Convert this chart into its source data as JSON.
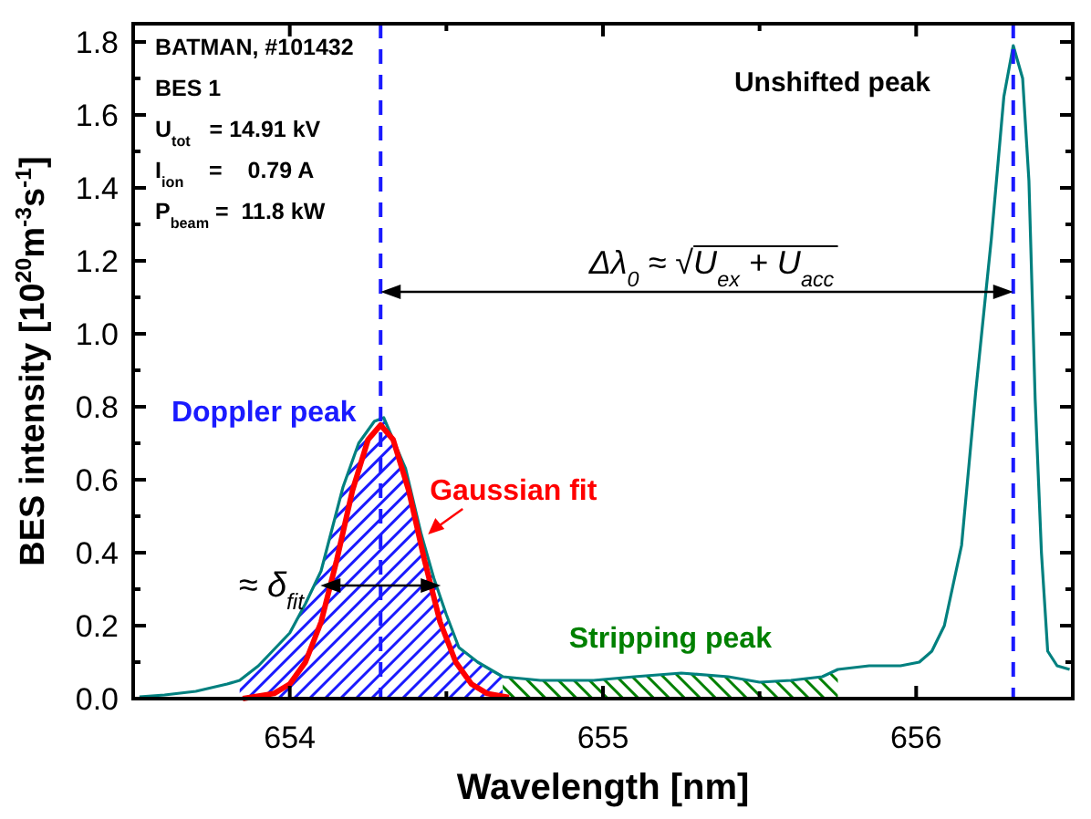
{
  "chart_data": {
    "type": "line",
    "xlabel": "Wavelength [nm]",
    "ylabel": "BES intensity [10$^{20}$m$^{-3}$s$^{-1}$]",
    "xlim": [
      653.5,
      656.5
    ],
    "ylim": [
      0,
      1.85
    ],
    "xticks": [
      {
        "value": 653.5,
        "label": null
      },
      654,
      {
        "value": 654.5,
        "label": null
      },
      655,
      {
        "value": 655.5,
        "label": null
      },
      656,
      {
        "value": 656.5,
        "label": null
      }
    ],
    "yticks": [
      "0.0",
      {
        "value": 0.1,
        "label": null
      },
      {
        "value": 0.2,
        "label": "0.2"
      },
      {
        "value": 0.3,
        "label": null
      },
      {
        "value": 0.4,
        "label": "0.4"
      },
      {
        "value": 0.5,
        "label": null
      },
      {
        "value": 0.6,
        "label": "0.6"
      },
      {
        "value": 0.7,
        "label": null
      },
      {
        "value": 0.8,
        "label": "0.8"
      },
      {
        "value": 0.9,
        "label": null
      },
      {
        "value": 1.0,
        "label": "1.0"
      },
      {
        "value": 1.1,
        "label": null
      },
      {
        "value": 1.2,
        "label": "1.2"
      },
      {
        "value": 1.3,
        "label": null
      },
      {
        "value": 1.4,
        "label": "1.4"
      },
      {
        "value": 1.5,
        "label": null
      },
      {
        "value": 1.6,
        "label": "1.6"
      },
      {
        "value": 1.7,
        "label": null
      },
      {
        "value": 1.8,
        "label": "1.8"
      }
    ],
    "grid": false,
    "legend": false,
    "marker": "none",
    "series": [
      {
        "type": "area",
        "name": "Doppler peak",
        "color": "#1a1aff",
        "x": [
          653.84,
          653.9,
          654.0,
          654.05,
          654.1,
          654.17,
          654.22,
          654.27,
          654.3,
          654.37,
          654.42,
          654.46,
          654.5,
          654.54,
          654.6,
          654.68
        ],
        "values": [
          0.05,
          0.09,
          0.18,
          0.26,
          0.35,
          0.58,
          0.7,
          0.76,
          0.77,
          0.63,
          0.45,
          0.33,
          0.23,
          0.14,
          0.1,
          0.06
        ]
      },
      {
        "type": "area",
        "name": "Stripping peak",
        "color": "#008000",
        "x": [
          654.68,
          654.8,
          654.97,
          655.1,
          655.25,
          655.4,
          655.5,
          655.6,
          655.7,
          655.75
        ],
        "values": [
          0.06,
          0.05,
          0.05,
          0.06,
          0.07,
          0.06,
          0.045,
          0.05,
          0.06,
          0.08
        ]
      },
      {
        "color": "#00807f",
        "x": [
          653.52,
          653.6,
          653.7,
          653.8,
          653.84,
          653.9,
          654.0,
          654.05,
          654.1,
          654.17,
          654.22,
          654.27,
          654.3,
          654.37,
          654.42,
          654.46,
          654.5,
          654.54,
          654.6,
          654.68,
          654.8,
          654.97,
          655.1,
          655.25,
          655.4,
          655.5,
          655.6,
          655.7,
          655.75,
          655.85,
          655.95,
          656.01,
          656.05,
          656.09,
          656.145,
          656.19,
          656.24,
          656.28,
          656.31,
          656.34,
          656.36,
          656.38,
          656.4,
          656.42,
          656.45,
          656.49
        ],
        "values": [
          0.005,
          0.01,
          0.02,
          0.04,
          0.05,
          0.09,
          0.18,
          0.26,
          0.35,
          0.58,
          0.7,
          0.76,
          0.77,
          0.63,
          0.45,
          0.33,
          0.23,
          0.14,
          0.1,
          0.06,
          0.05,
          0.05,
          0.06,
          0.07,
          0.06,
          0.045,
          0.05,
          0.06,
          0.08,
          0.09,
          0.09,
          0.1,
          0.13,
          0.2,
          0.42,
          0.84,
          1.26,
          1.65,
          1.79,
          1.7,
          1.42,
          0.82,
          0.4,
          0.13,
          0.09,
          0.08
        ]
      },
      {
        "name": "Gaussian fit",
        "color": "#ff0000",
        "x": [
          653.85,
          653.95,
          654.0,
          654.05,
          654.1,
          654.15,
          654.2,
          654.25,
          654.29,
          654.33,
          654.38,
          654.43,
          654.48,
          654.53,
          654.58,
          654.63,
          654.7
        ],
        "values": [
          0.0,
          0.014,
          0.04,
          0.1,
          0.21,
          0.38,
          0.57,
          0.71,
          0.75,
          0.71,
          0.57,
          0.38,
          0.21,
          0.1,
          0.04,
          0.014,
          0.003
        ]
      }
    ],
    "ref_lines": [
      {
        "axis": "x",
        "value": 654.29,
        "color": "#1a1aff",
        "line_style": "dashed"
      },
      {
        "axis": "x",
        "value": 656.31,
        "color": "#1a1aff",
        "line_style": "dashed"
      }
    ],
    "annotations": [
      "BATMAN, #101432",
      "BES 1",
      "U$_{tot}$   = 14.91 kV",
      "I$_{ion}$    =    0.79 A",
      "P$_{beam}$ =  11.8 kW",
      "Unshifted peak",
      "Δλ$_{0}$ ≈ √U$_{ex}$ + U$_{acc}$",
      {
        "text": "≈ δ$_{fit}$",
        "x": 654.29,
        "y": 0.31
      }
    ]
  }
}
